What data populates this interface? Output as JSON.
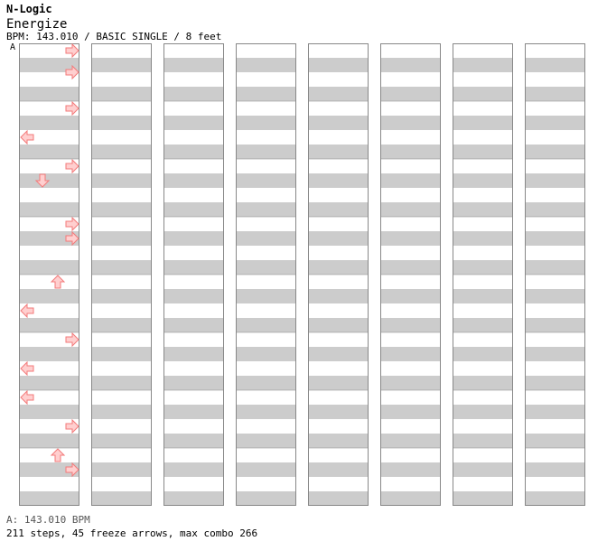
{
  "header": {
    "artist": "N-Logic",
    "title": "Energize",
    "meta": "BPM: 143.010 / BASIC SINGLE / 8 feet",
    "bpm_marker": "A"
  },
  "footer": {
    "bpm_line": "A: 143.010 BPM",
    "stats": "211 steps, 45 freeze arrows, max combo 266"
  },
  "colors": {
    "red": "#f37a7a",
    "red_fill": "#ffcfcf",
    "blue": "#4c93e0",
    "blue_fill": "#9fcbf5",
    "pink": "#d27ad6",
    "pink_fill": "#f5c8f5",
    "freeze": "#6ab86a",
    "freeze_fill": "#c9f4c0",
    "stripe": "#cccccc"
  },
  "chart_data": {
    "type": "step-chart",
    "columns": 8,
    "measures_per_column": 8,
    "lanes": [
      "left",
      "down",
      "up",
      "right"
    ],
    "notes": [
      {
        "m": 0,
        "b": 0,
        "lane": "right",
        "color": "red"
      },
      {
        "m": 0,
        "b": 3,
        "lane": "right",
        "color": "red"
      },
      {
        "m": 1,
        "b": 0,
        "lane": "right",
        "color": "red"
      },
      {
        "m": 1,
        "b": 4,
        "lane": "left",
        "color": "red"
      },
      {
        "m": 2,
        "b": 0,
        "lane": "right",
        "color": "red"
      },
      {
        "m": 2,
        "b": 2,
        "lane": "down",
        "color": "red"
      },
      {
        "m": 3,
        "b": 0,
        "lane": "right",
        "color": "red"
      },
      {
        "m": 3,
        "b": 2,
        "lane": "right",
        "color": "red"
      },
      {
        "m": 4,
        "b": 0,
        "lane": "up",
        "color": "red"
      },
      {
        "m": 4,
        "b": 4,
        "lane": "left",
        "color": "red"
      },
      {
        "m": 5,
        "b": 0,
        "lane": "right",
        "color": "red"
      },
      {
        "m": 5,
        "b": 4,
        "lane": "left",
        "color": "red"
      },
      {
        "m": 6,
        "b": 0,
        "lane": "left",
        "color": "red"
      },
      {
        "m": 6,
        "b": 4,
        "lane": "right",
        "color": "red"
      },
      {
        "m": 7,
        "b": 0,
        "lane": "up",
        "color": "red"
      },
      {
        "m": 7,
        "b": 2,
        "lane": "right",
        "color": "red"
      }
    ]
  }
}
